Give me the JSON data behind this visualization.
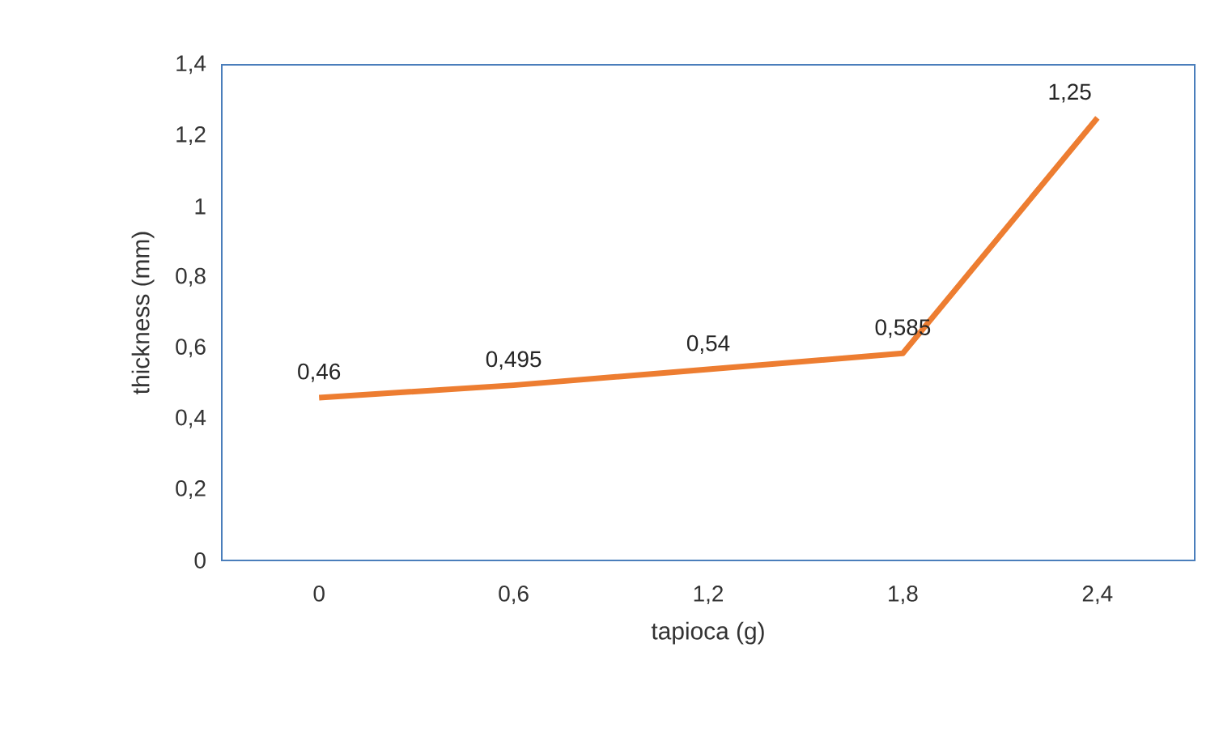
{
  "chart_data": {
    "type": "line",
    "xlabel": "tapioca  (g)",
    "ylabel": "thickness (mm)",
    "categories": [
      "0",
      "0,6",
      "1,2",
      "1,8",
      "2,4"
    ],
    "values": [
      0.46,
      0.495,
      0.54,
      0.585,
      1.25
    ],
    "value_labels": [
      "0,46",
      "0,495",
      "0,54",
      "0,585",
      "1,25"
    ],
    "color": "#ed7d31",
    "ylim": [
      0,
      1.4
    ],
    "yticks": [
      0,
      {
        "value": 0.2,
        "label": "0,2"
      },
      {
        "value": 0.4,
        "label": "0,4"
      },
      {
        "value": 0.6,
        "label": "0,6"
      },
      {
        "value": 0.8,
        "label": "0,8"
      },
      1,
      {
        "value": 1.2,
        "label": "1,2"
      },
      {
        "value": 1.4,
        "label": "1,4"
      }
    ],
    "grid": false
  }
}
